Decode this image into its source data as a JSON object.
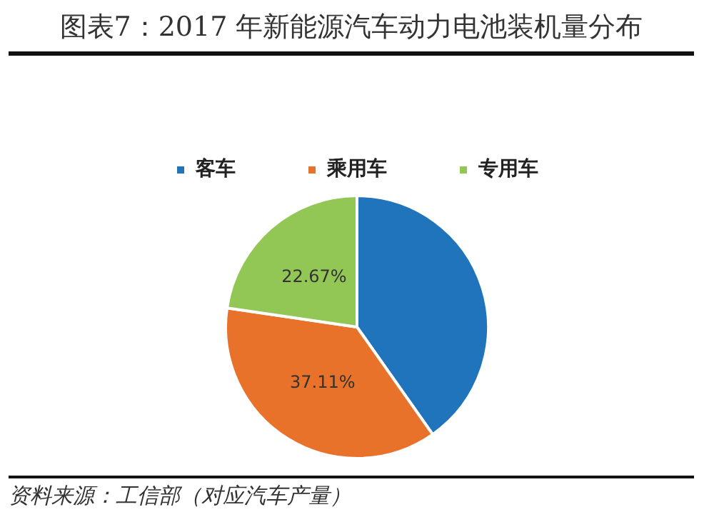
{
  "chart_data": {
    "type": "pie",
    "title": "图表7：2017 年新能源汽车动力电池装机量分布",
    "categories": [
      "客车",
      "乘用车",
      "专用车"
    ],
    "values": [
      40.22,
      37.11,
      22.67
    ],
    "colors": [
      "#1f74bb",
      "#e8722a",
      "#92c756"
    ],
    "value_labels": [
      null,
      "37.11%",
      "22.67%"
    ],
    "legend": "top",
    "annotations": [
      "资料来源：工信部（对应汽车产量）"
    ]
  }
}
